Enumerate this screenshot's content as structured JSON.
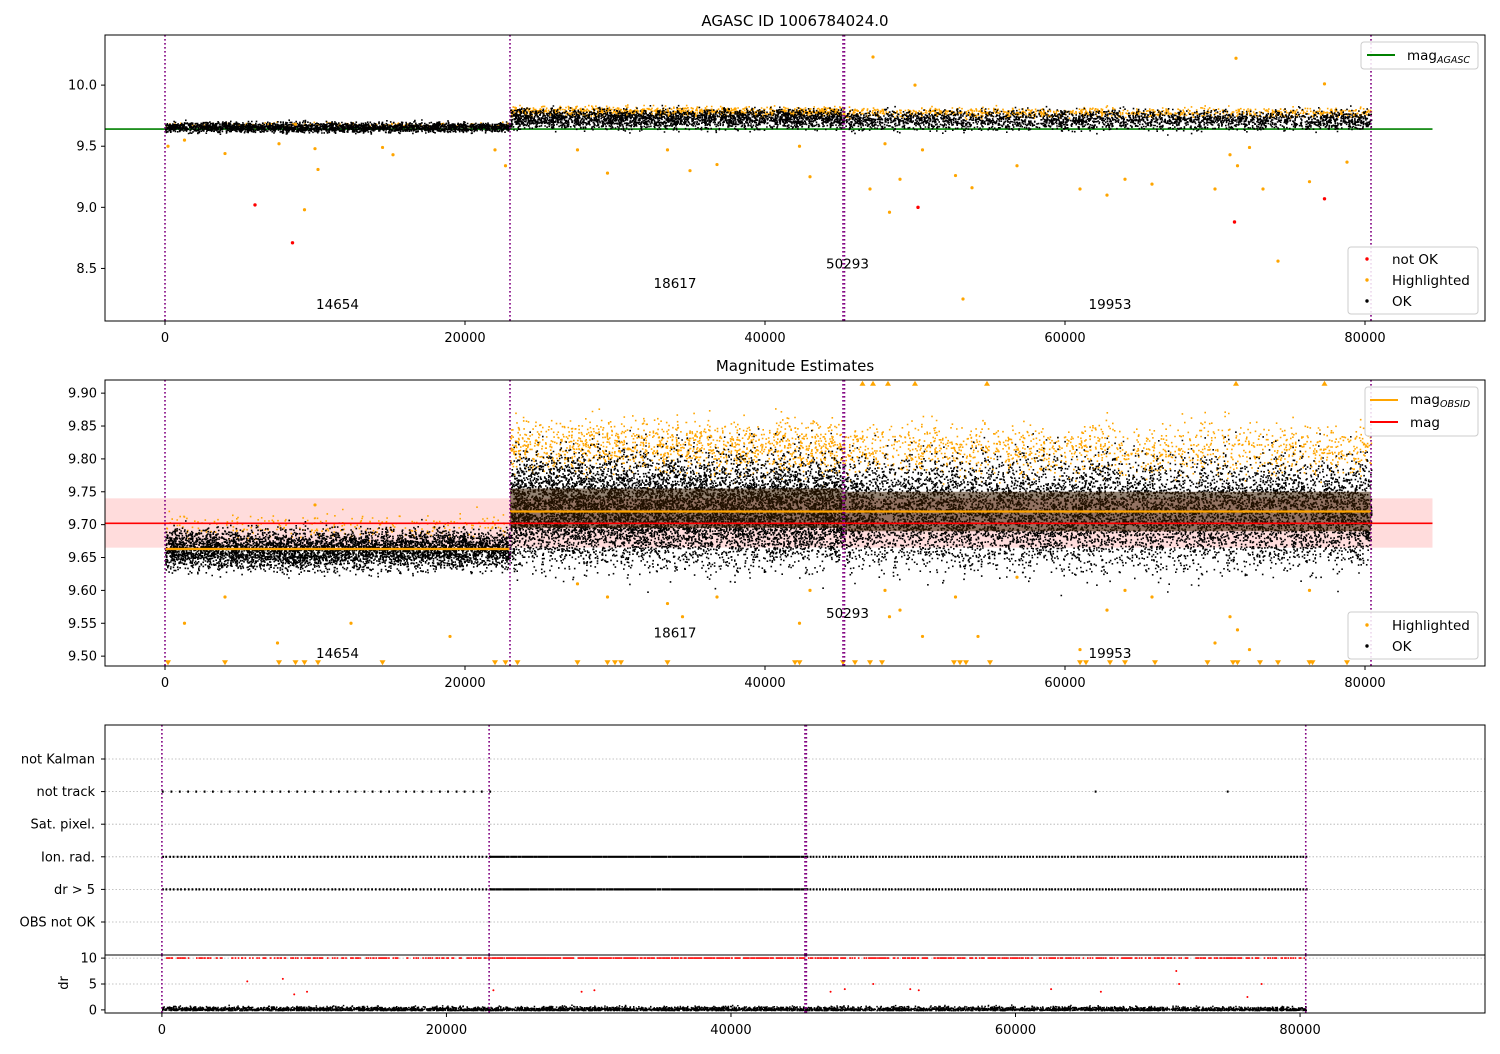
{
  "colors": {
    "ok": "#000000",
    "highlighted": "#ffa500",
    "not_ok": "#ff0000",
    "mag_agasc": "#008000",
    "mag_obsid": "#ffa500",
    "mag": "#ff0000",
    "mag_band": "#ffd6d6",
    "obs_divider": "#800080",
    "grid": "#b0b0b0"
  },
  "chart_data": [
    {
      "type": "scatter",
      "title": "AGASC ID 1006784024.0",
      "xlabel": "",
      "ylabel": "",
      "xlim": [
        -4000,
        88000
      ],
      "ylim": [
        8.07,
        10.41
      ],
      "xticks": [
        0,
        20000,
        40000,
        60000,
        80000
      ],
      "yticks": [
        8.5,
        9.0,
        9.5,
        10.0
      ],
      "xtick_labels": [
        "0",
        "20000",
        "40000",
        "60000",
        "80000"
      ],
      "ytick_labels": [
        "8.5",
        "9.0",
        "9.5",
        "10.0"
      ],
      "obs_boundaries": [
        0,
        23000,
        45200,
        45300,
        80400
      ],
      "obs_labels": [
        {
          "text": "14654",
          "x": 11500,
          "y": 8.17
        },
        {
          "text": "18617",
          "x": 34000,
          "y": 8.34
        },
        {
          "text": "50293",
          "x": 45500,
          "y": 8.5
        },
        {
          "text": "19953",
          "x": 63000,
          "y": 8.17
        }
      ],
      "bands": [
        {
          "x0": 0,
          "x1": 23000,
          "center": 9.66,
          "spread": 0.04
        },
        {
          "x0": 23000,
          "x1": 45250,
          "center": 9.73,
          "spread": 0.08
        },
        {
          "x0": 45250,
          "x1": 80400,
          "center": 9.72,
          "spread": 0.08
        }
      ],
      "lines": [
        {
          "name": "mag_AGASC",
          "y": 9.64,
          "x0": -4000,
          "x1": 84500
        }
      ],
      "outliers_highlighted": [
        [
          200,
          9.5
        ],
        [
          1300,
          9.55
        ],
        [
          4000,
          9.44
        ],
        [
          7600,
          9.52
        ],
        [
          8700,
          9.68
        ],
        [
          9300,
          8.98
        ],
        [
          10000,
          9.48
        ],
        [
          10200,
          9.31
        ],
        [
          14500,
          9.49
        ],
        [
          15200,
          9.43
        ],
        [
          22000,
          9.47
        ],
        [
          22700,
          9.34
        ],
        [
          27500,
          9.47
        ],
        [
          29500,
          9.28
        ],
        [
          33500,
          9.47
        ],
        [
          35000,
          9.3
        ],
        [
          36800,
          9.35
        ],
        [
          42300,
          9.5
        ],
        [
          43000,
          9.25
        ],
        [
          48000,
          9.52
        ],
        [
          48300,
          8.96
        ],
        [
          49000,
          9.23
        ],
        [
          50500,
          9.47
        ],
        [
          52700,
          9.26
        ],
        [
          53200,
          8.25
        ],
        [
          53800,
          9.16
        ],
        [
          56800,
          9.34
        ],
        [
          61000,
          9.15
        ],
        [
          62800,
          9.1
        ],
        [
          64000,
          9.23
        ],
        [
          65800,
          9.19
        ],
        [
          70000,
          9.15
        ],
        [
          71000,
          9.43
        ],
        [
          71500,
          9.34
        ],
        [
          72300,
          9.49
        ],
        [
          73200,
          9.15
        ],
        [
          74200,
          8.56
        ],
        [
          76300,
          9.21
        ],
        [
          78800,
          9.37
        ],
        [
          47000,
          9.15
        ],
        [
          47200,
          10.23
        ],
        [
          50000,
          10.0
        ],
        [
          71400,
          10.22
        ],
        [
          77300,
          10.01
        ]
      ],
      "outliers_not_ok": [
        [
          6000,
          9.02
        ],
        [
          8500,
          8.71
        ],
        [
          50200,
          9.0
        ],
        [
          71300,
          8.88
        ],
        [
          77300,
          9.07
        ]
      ],
      "legend_top": [
        {
          "label": "mag",
          "sub": "AGASC"
        }
      ],
      "legend_bottom": [
        {
          "label": "not OK"
        },
        {
          "label": "Highlighted"
        },
        {
          "label": "OK"
        }
      ]
    },
    {
      "type": "scatter",
      "title": "Magnitude Estimates",
      "xlabel": "",
      "ylabel": "",
      "xlim": [
        -4000,
        88000
      ],
      "ylim": [
        9.485,
        9.92
      ],
      "xticks": [
        0,
        20000,
        40000,
        60000,
        80000
      ],
      "yticks": [
        9.5,
        9.55,
        9.6,
        9.65,
        9.7,
        9.75,
        9.8,
        9.85,
        9.9
      ],
      "xtick_labels": [
        "0",
        "20000",
        "40000",
        "60000",
        "80000"
      ],
      "ytick_labels": [
        "9.50",
        "9.55",
        "9.60",
        "9.65",
        "9.70",
        "9.75",
        "9.80",
        "9.85",
        "9.90"
      ],
      "obs_boundaries": [
        0,
        23000,
        45200,
        45300,
        80400
      ],
      "obs_labels": [
        {
          "text": "14654",
          "x": 11500,
          "y": 9.497
        },
        {
          "text": "18617",
          "x": 34000,
          "y": 9.528
        },
        {
          "text": "50293",
          "x": 45500,
          "y": 9.558
        },
        {
          "text": "19953",
          "x": 63000,
          "y": 9.497
        }
      ],
      "mag": 9.702,
      "mag_band": [
        9.665,
        9.74
      ],
      "mag_band_x": [
        -4000,
        84500
      ],
      "obsid_means": [
        {
          "x0": 0,
          "x1": 23000,
          "y": 9.663
        },
        {
          "x0": 23000,
          "x1": 45250,
          "y": 9.72
        },
        {
          "x0": 45250,
          "x1": 80400,
          "y": 9.72
        }
      ],
      "bands": [
        {
          "x0": 0,
          "x1": 23000,
          "center": 9.663,
          "spread": 0.03
        },
        {
          "x0": 23000,
          "x1": 45250,
          "center": 9.725,
          "spread": 0.08
        },
        {
          "x0": 45250,
          "x1": 80400,
          "center": 9.72,
          "spread": 0.08
        }
      ],
      "legend_top": [
        {
          "label": "mag",
          "sub": "OBSID"
        },
        {
          "label": "mag",
          "sub": ""
        }
      ],
      "legend_bottom": [
        {
          "label": "Highlighted"
        },
        {
          "label": "OK"
        }
      ]
    },
    {
      "type": "scatter",
      "title": "",
      "xlabel": "",
      "ylabel": "",
      "xlim": [
        -4000,
        93000
      ],
      "categories": [
        "not Kalman",
        "not track",
        "Sat. pixel.",
        "Ion. rad.",
        "dr > 5",
        "OBS not OK"
      ],
      "flag_rows": {
        "not Kalman": [],
        "not track": [
          [
            0,
            23000,
            40
          ],
          [
            65500,
            65600,
            1
          ],
          [
            74800,
            74900,
            1
          ]
        ],
        "Sat. pixel.": [],
        "Ion. rad.": [
          [
            0,
            23000,
            90
          ],
          [
            23000,
            45300,
            200
          ],
          [
            45300,
            80400,
            160
          ]
        ],
        "dr > 5": [
          [
            0,
            23000,
            90
          ],
          [
            23000,
            45300,
            200
          ],
          [
            45300,
            80400,
            160
          ]
        ],
        "OBS not OK": []
      }
    },
    {
      "type": "scatter",
      "title": "",
      "xlabel": "",
      "ylabel": "dr",
      "xlim": [
        -4000,
        93000
      ],
      "ylim": [
        -0.6,
        10.6
      ],
      "xticks": [
        0,
        20000,
        40000,
        60000,
        80000
      ],
      "yticks": [
        0,
        5,
        10
      ],
      "xtick_labels": [
        "0",
        "20000",
        "40000",
        "60000",
        "80000"
      ],
      "ytick_labels": [
        "0",
        "5",
        "10"
      ]
    }
  ]
}
